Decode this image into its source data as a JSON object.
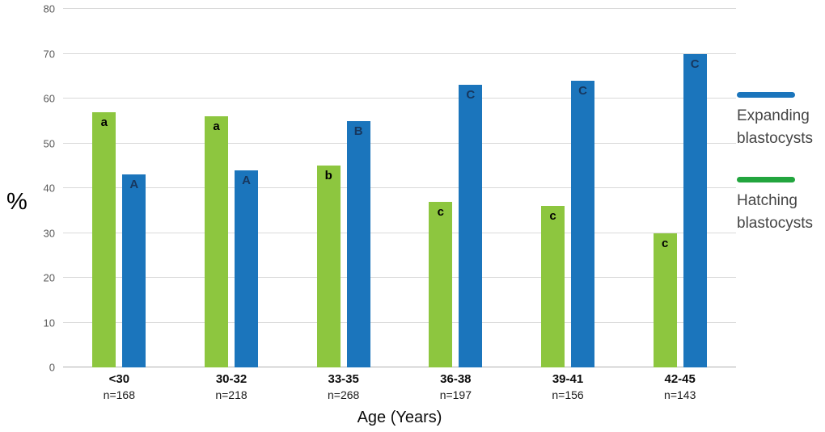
{
  "chart_data": {
    "type": "bar",
    "title": "",
    "xlabel": "Age (Years)",
    "ylabel": "%",
    "ylim": [
      0,
      80
    ],
    "ytick_step": 10,
    "yticks": [
      0,
      10,
      20,
      30,
      40,
      50,
      60,
      70,
      80
    ],
    "grid": "horizontal",
    "legend_position": "right",
    "categories": [
      "<30",
      "30-32",
      "33-35",
      "36-38",
      "39-41",
      "42-45"
    ],
    "n_labels": [
      "n=168",
      "n=218",
      "n=268",
      "n=197",
      "n=156",
      "n=143"
    ],
    "series": [
      {
        "name": "Hatching blastocysts",
        "color": "#8dc63f",
        "letter_color": "#000000",
        "values": [
          57,
          56,
          45,
          37,
          36,
          30
        ],
        "letters": [
          "a",
          "a",
          "b",
          "c",
          "c",
          "c"
        ]
      },
      {
        "name": "Expanding blastocysts",
        "color": "#1b75bc",
        "letter_color": "#17375e",
        "values": [
          43,
          44,
          55,
          63,
          64,
          70
        ],
        "letters": [
          "A",
          "A",
          "B",
          "C",
          "C",
          "C"
        ]
      }
    ]
  },
  "legend": {
    "items": [
      {
        "label": "Expanding blastocysts",
        "color": "#1b75bc"
      },
      {
        "label": "Hatching blastocysts",
        "color": "#22a53e"
      }
    ]
  }
}
